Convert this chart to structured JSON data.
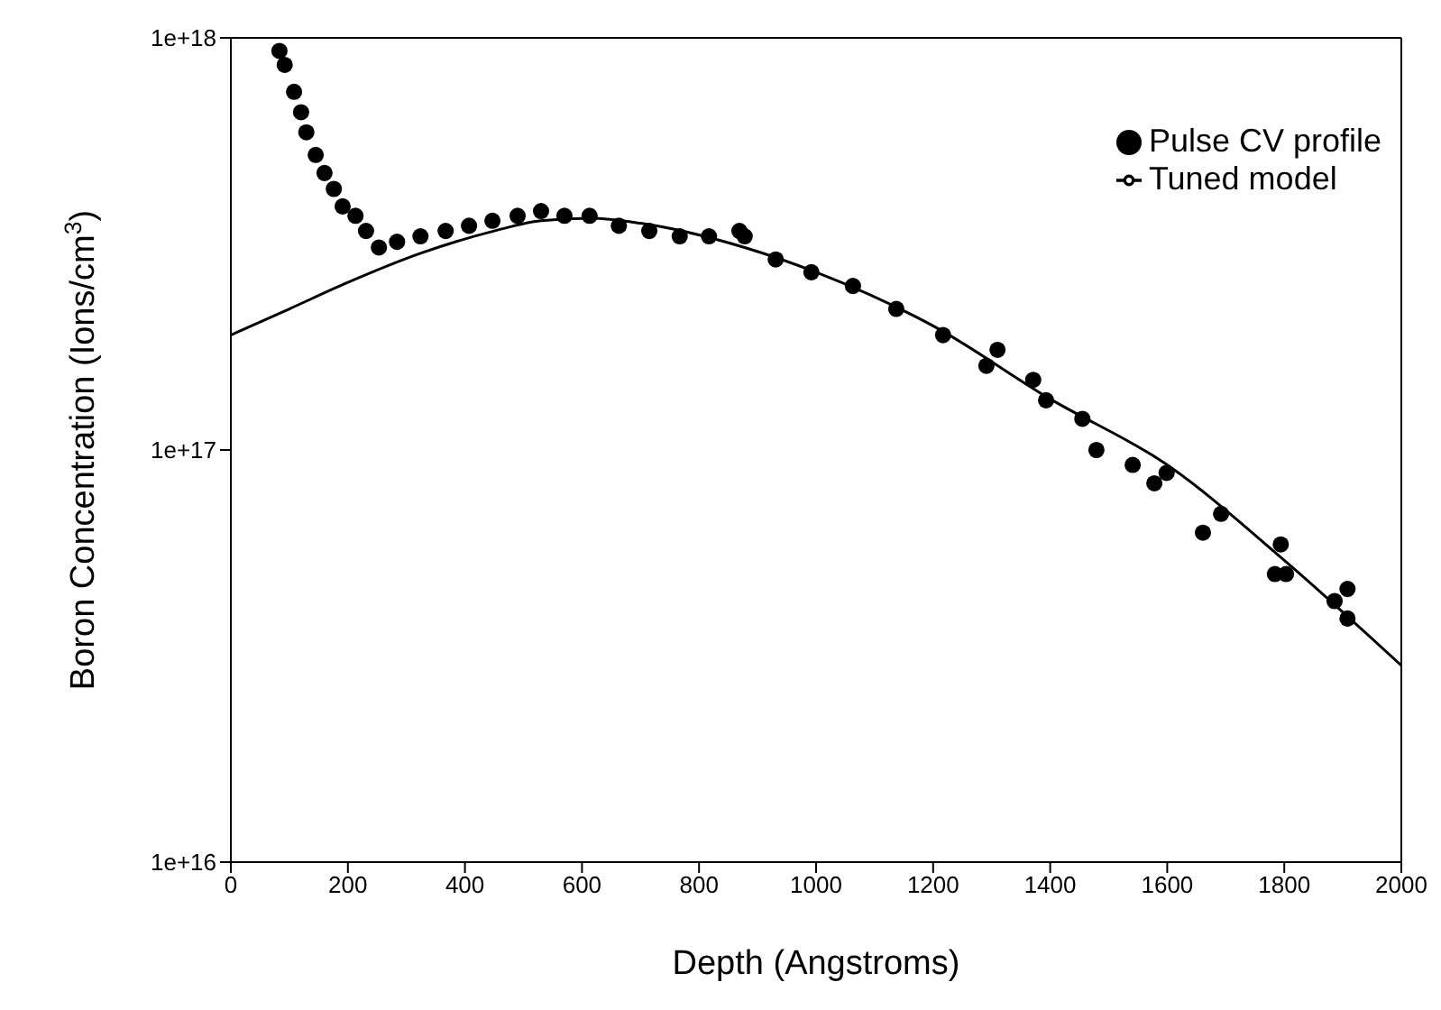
{
  "chart_data": {
    "type": "scatter",
    "xlabel": "Depth (Angstroms)",
    "ylabel": "Boron Concentration (Ions/cm$^{3}$)",
    "log": "y",
    "grid": false,
    "legend": "top right",
    "xlim": [
      0,
      2000
    ],
    "xticks": [
      0,
      200,
      400,
      600,
      800,
      1000,
      1200,
      1400,
      1600,
      1800,
      2000
    ],
    "ylim": [
      1e+16,
      1e+18
    ],
    "yticks": [
      {
        "value": 1e+16,
        "label": "1e+16"
      },
      {
        "value": 1e+17,
        "label": "1e+17"
      },
      {
        "value": 1e+18,
        "label": "1e+18"
      }
    ],
    "series": [
      {
        "name": "Pulse CV profile",
        "type": "scatter",
        "color": "#000000",
        "marker": "circle",
        "x": [
          83,
          92,
          108,
          120,
          129,
          145,
          160,
          176,
          191,
          213,
          231,
          253,
          284,
          324,
          367,
          407,
          447,
          490,
          530,
          570,
          613,
          663,
          715,
          767,
          817,
          869,
          878,
          931,
          992,
          1063,
          1137,
          1217,
          1291,
          1310,
          1371,
          1393,
          1455,
          1479,
          1541,
          1578,
          1599,
          1661,
          1692,
          1784,
          1794,
          1803,
          1886,
          1908,
          1908
        ],
        "values": [
          9.3e+17,
          8.6e+17,
          7.4e+17,
          6.6e+17,
          5.9e+17,
          5.2e+17,
          4.7e+17,
          4.3e+17,
          3.9e+17,
          3.7e+17,
          3.4e+17,
          3.1e+17,
          3.2e+17,
          3.3e+17,
          3.4e+17,
          3.5e+17,
          3.6e+17,
          3.7e+17,
          3.8e+17,
          3.7e+17,
          3.7e+17,
          3.5e+17,
          3.4e+17,
          3.3e+17,
          3.3e+17,
          3.4e+17,
          3.3e+17,
          2.9e+17,
          2.7e+17,
          2.5e+17,
          2.2e+17,
          1.9e+17,
          1.6e+17,
          1.75e+17,
          1.48e+17,
          1.32e+17,
          1.19e+17,
          1e+17,
          9.2e+16,
          8.3e+16,
          8.8e+16,
          6.3e+16,
          7e+16,
          5e+16,
          5.9e+16,
          5e+16,
          4.3e+16,
          4.6e+16,
          3.9e+16
        ]
      },
      {
        "name": "Tuned model",
        "type": "line",
        "color": "#000000",
        "marker": "none",
        "line_style": "solid",
        "x": [
          0,
          100,
          200,
          324,
          450,
          530,
          615,
          700,
          878,
          1000,
          1200,
          1400,
          1600,
          1800,
          2000
        ],
        "values": [
          1.9e+17,
          2.2e+17,
          2.55e+17,
          3e+17,
          3.4e+17,
          3.6e+17,
          3.65e+17,
          3.55e+17,
          3.1e+17,
          2.7e+17,
          2e+17,
          1.33e+17,
          9.2e+16,
          5.4e+16,
          3e+16
        ]
      }
    ]
  }
}
